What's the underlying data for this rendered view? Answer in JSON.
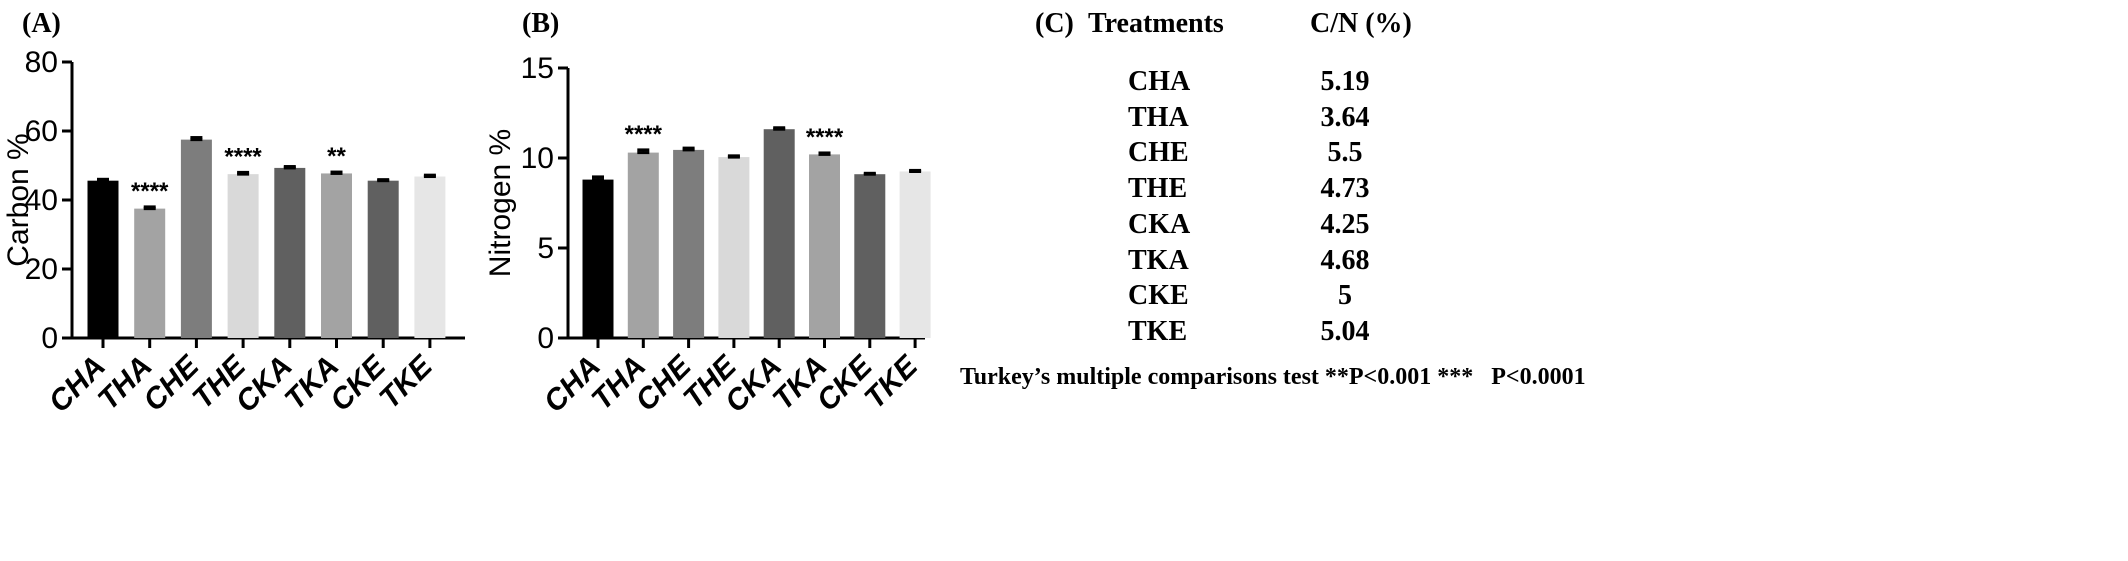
{
  "panels": {
    "a": "(A)",
    "b": "(B)",
    "c": "(C)"
  },
  "chart_data": [
    {
      "type": "bar",
      "panel": "(A)",
      "ylabel": "Carbon %",
      "ylim": [
        0,
        80
      ],
      "yticks": [
        0,
        20,
        40,
        60,
        80
      ],
      "categories": [
        "CHA",
        "THA",
        "CHE",
        "THE",
        "CKA",
        "TKA",
        "CKE",
        "TKE"
      ],
      "values": [
        45.6,
        37.5,
        57.5,
        47.5,
        49.3,
        47.7,
        45.6,
        46.8
      ],
      "errors": [
        0.4,
        0.5,
        0.6,
        0.5,
        0.4,
        0.4,
        0.3,
        0.4
      ],
      "colors": [
        "#000000",
        "#a3a3a3",
        "#7d7d7d",
        "#d9d9d9",
        "#606060",
        "#a3a3a3",
        "#606060",
        "#e6e6e6"
      ],
      "annotations": [
        "",
        "****",
        "",
        "****",
        "",
        "**",
        "",
        ""
      ]
    },
    {
      "type": "bar",
      "panel": "(B)",
      "ylabel": "Nitrogen %",
      "ylim": [
        0,
        15
      ],
      "yticks": [
        0,
        5,
        10,
        15
      ],
      "categories": [
        "CHA",
        "THA",
        "CHE",
        "THE",
        "CKA",
        "TKA",
        "CKE",
        "TKE"
      ],
      "values": [
        8.8,
        10.3,
        10.45,
        10.05,
        11.6,
        10.2,
        9.1,
        9.25
      ],
      "errors": [
        0.15,
        0.15,
        0.1,
        0.07,
        0.08,
        0.08,
        0.05,
        0.06
      ],
      "colors": [
        "#000000",
        "#a3a3a3",
        "#7d7d7d",
        "#d9d9d9",
        "#606060",
        "#a3a3a3",
        "#606060",
        "#e6e6e6"
      ],
      "annotations": [
        "",
        "****",
        "",
        "",
        "",
        "****",
        "",
        ""
      ]
    },
    {
      "type": "table",
      "panel": "(C)",
      "columns": [
        "Treatments",
        "C/N (%)"
      ],
      "rows": [
        [
          "CHA",
          "5.19"
        ],
        [
          "THA",
          "3.64"
        ],
        [
          "CHE",
          "5.5"
        ],
        [
          "THE",
          "4.73"
        ],
        [
          "CKA",
          "4.25"
        ],
        [
          "TKA",
          "4.68"
        ],
        [
          "CKE",
          "5"
        ],
        [
          "TKE",
          "5.04"
        ]
      ]
    }
  ],
  "footnote": "Turkey’s multiple comparisons test **P<0.001 ***   P<0.0001"
}
